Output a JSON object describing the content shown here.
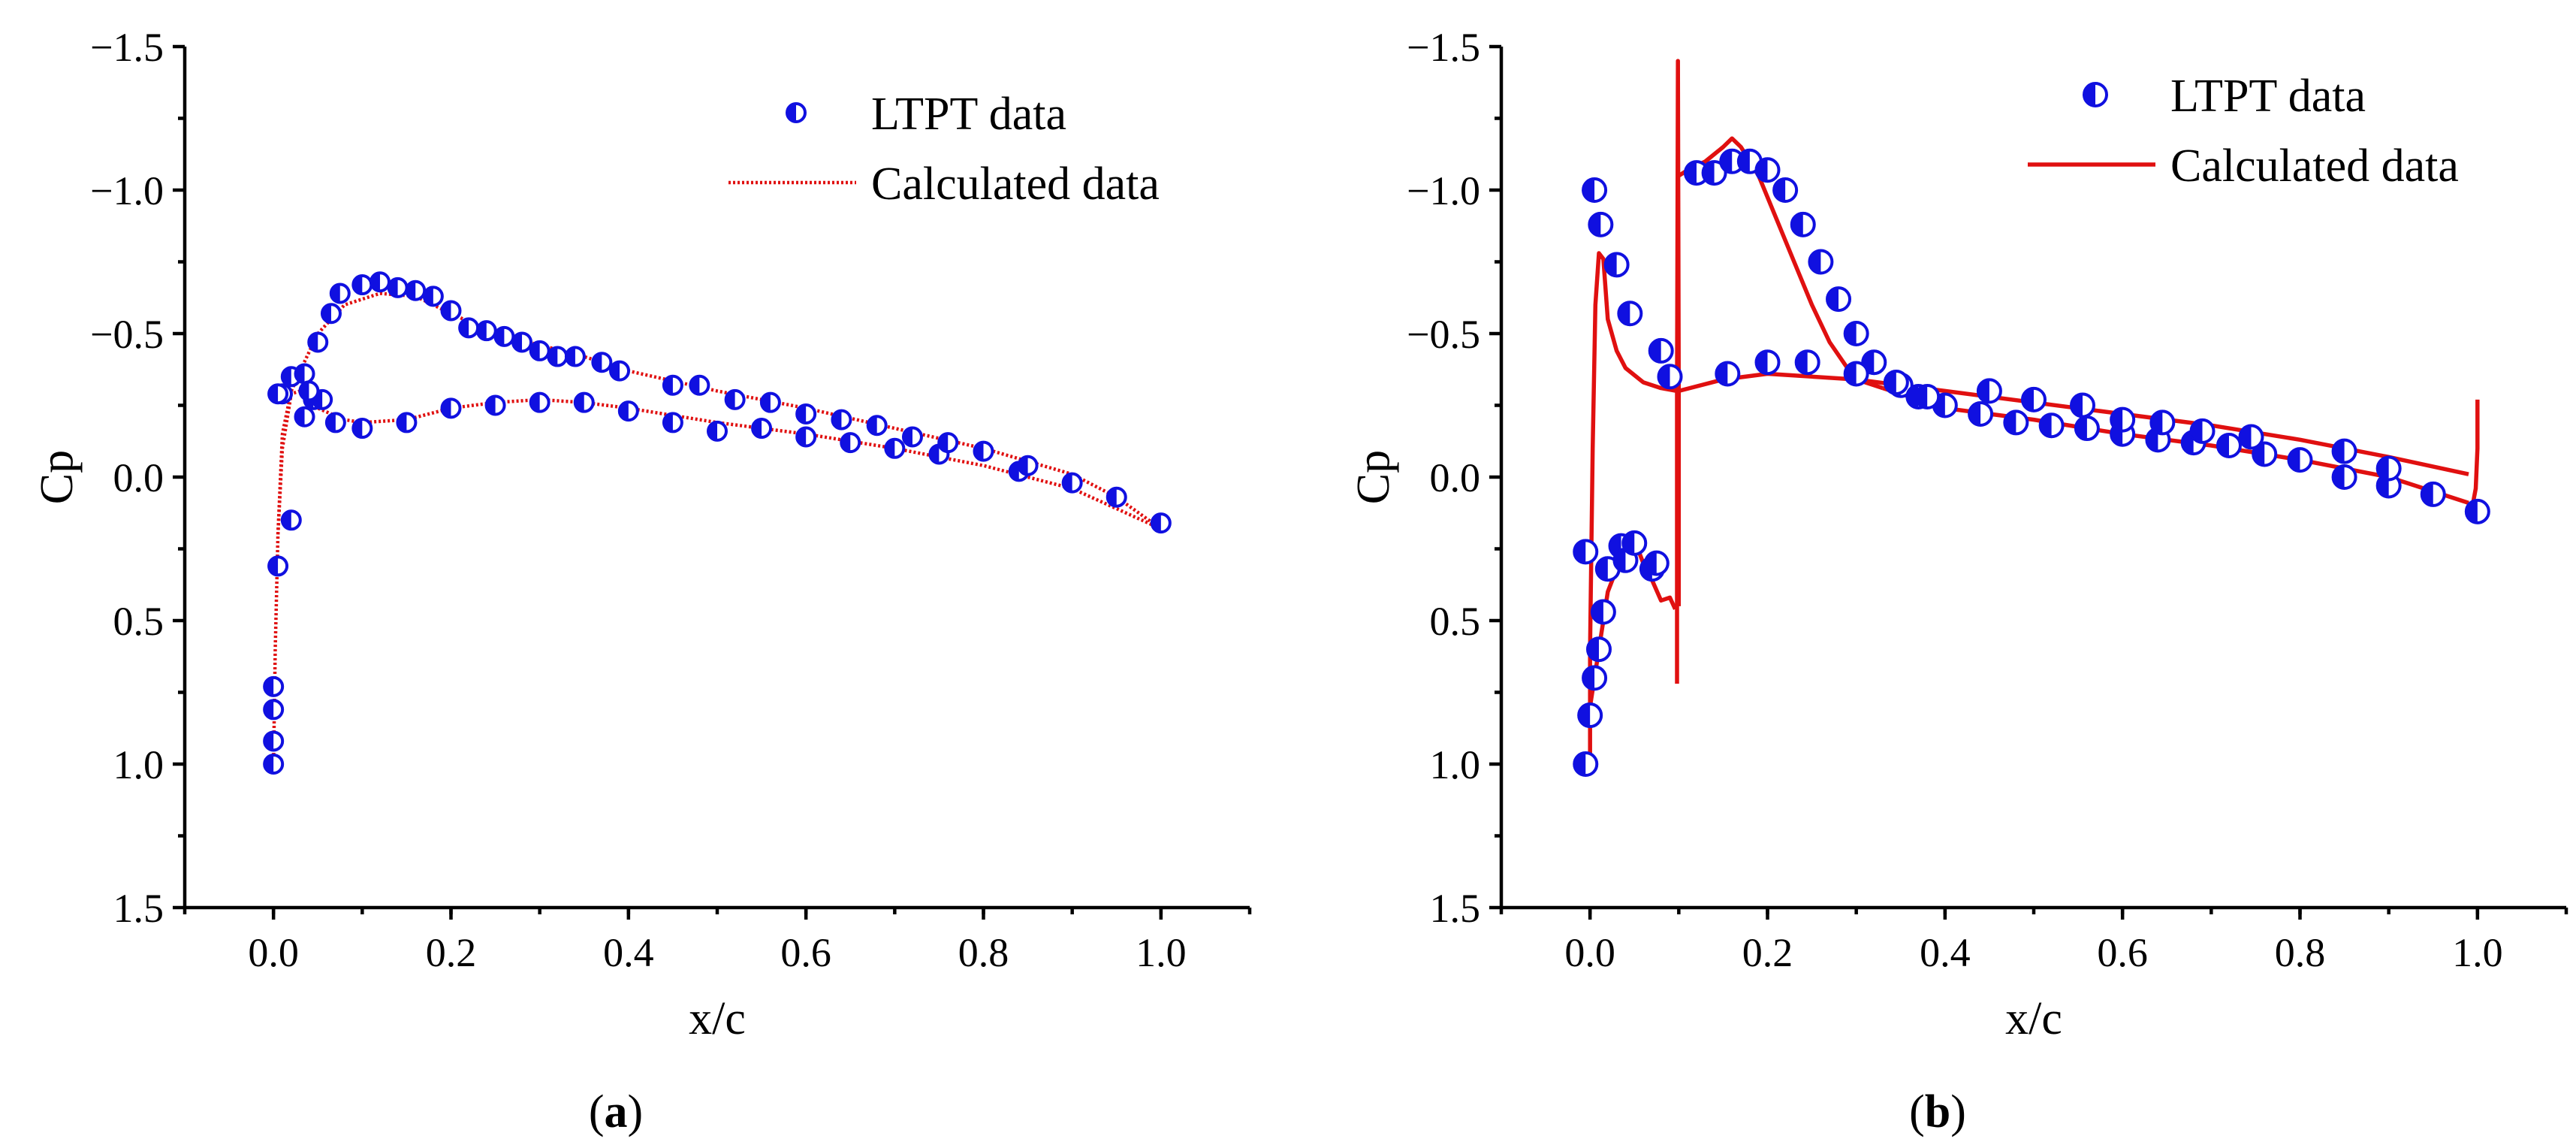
{
  "colors": {
    "marker": "#1010e0",
    "line": "#e01010",
    "axis": "#000000"
  },
  "chart_data": [
    {
      "type": "scatter",
      "panel_label": "a",
      "xlabel": "x/c",
      "ylabel": "Cp",
      "xlim": [
        -0.1,
        1.1
      ],
      "ylim": [
        -1.5,
        1.5
      ],
      "y_inverted": true,
      "x_ticks": [
        "0.0",
        "0.2",
        "0.4",
        "0.6",
        "0.8",
        "1.0"
      ],
      "x_tick_values": [
        0,
        0.2,
        0.4,
        0.6,
        0.8,
        1.0
      ],
      "y_ticks": [
        "−1.5",
        "−1.0",
        "−0.5",
        "0.0",
        "0.5",
        "1.0",
        "1.5"
      ],
      "y_tick_values": [
        -1.5,
        -1.0,
        -0.5,
        0,
        0.5,
        1.0,
        1.5
      ],
      "legend": {
        "position": "top-right",
        "entries": [
          "LTPT data",
          "Calculated data"
        ]
      },
      "series": [
        {
          "name": "LTPT data",
          "kind": "markers",
          "x": [
            0.0,
            0.0,
            0.0,
            0.0,
            0.005,
            0.02,
            0.01,
            0.02,
            0.035,
            0.045,
            0.055,
            0.07,
            0.1,
            0.15,
            0.2,
            0.25,
            0.3,
            0.35,
            0.4,
            0.45,
            0.5,
            0.55,
            0.6,
            0.65,
            0.7,
            0.75,
            0.84,
            0.005,
            0.035,
            0.04,
            0.05,
            0.065,
            0.075,
            0.1,
            0.12,
            0.14,
            0.16,
            0.18,
            0.2,
            0.22,
            0.24,
            0.26,
            0.28,
            0.3,
            0.32,
            0.34,
            0.37,
            0.39,
            0.45,
            0.48,
            0.52,
            0.56,
            0.6,
            0.64,
            0.68,
            0.72,
            0.76,
            0.8,
            0.85,
            0.9,
            0.95,
            1.0
          ],
          "y": [
            1.0,
            0.92,
            0.81,
            0.73,
            0.31,
            0.15,
            -0.29,
            -0.35,
            -0.21,
            -0.27,
            -0.27,
            -0.19,
            -0.17,
            -0.19,
            -0.24,
            -0.25,
            -0.26,
            -0.26,
            -0.23,
            -0.19,
            -0.16,
            -0.17,
            -0.14,
            -0.12,
            -0.1,
            -0.08,
            -0.02,
            -0.29,
            -0.36,
            -0.3,
            -0.47,
            -0.57,
            -0.64,
            -0.67,
            -0.68,
            -0.66,
            -0.65,
            -0.63,
            -0.58,
            -0.52,
            -0.51,
            -0.49,
            -0.47,
            -0.44,
            -0.42,
            -0.42,
            -0.4,
            -0.37,
            -0.32,
            -0.32,
            -0.27,
            -0.26,
            -0.22,
            -0.2,
            -0.18,
            -0.14,
            -0.12,
            -0.09,
            -0.04,
            0.02,
            0.07,
            0.16
          ]
        },
        {
          "name": "Calculated data",
          "kind": "line",
          "style": "dotted",
          "segments": [
            {
              "x": [
                0.0,
                0.002,
                0.005,
                0.01,
                0.02,
                0.03,
                0.05,
                0.08,
                0.12,
                0.16,
                0.2,
                0.25,
                0.3,
                0.35,
                0.4,
                0.5,
                0.6,
                0.7,
                0.8,
                0.9,
                0.95,
                1.0
              ],
              "y": [
                1.0,
                0.6,
                0.2,
                -0.15,
                -0.3,
                -0.37,
                -0.5,
                -0.6,
                -0.64,
                -0.63,
                -0.57,
                -0.5,
                -0.46,
                -0.42,
                -0.37,
                -0.3,
                -0.24,
                -0.17,
                -0.1,
                -0.01,
                0.07,
                0.18
              ]
            },
            {
              "x": [
                0.005,
                0.01,
                0.02,
                0.03,
                0.05,
                0.08,
                0.1,
                0.15,
                0.2,
                0.25,
                0.3,
                0.35,
                0.4,
                0.5,
                0.6,
                0.7,
                0.8,
                0.9,
                1.0
              ],
              "y": [
                0.2,
                -0.1,
                -0.29,
                -0.3,
                -0.24,
                -0.2,
                -0.19,
                -0.2,
                -0.24,
                -0.26,
                -0.27,
                -0.26,
                -0.24,
                -0.19,
                -0.15,
                -0.1,
                -0.04,
                0.04,
                0.18
              ]
            }
          ]
        }
      ]
    },
    {
      "type": "scatter",
      "panel_label": "b",
      "xlabel": "x/c",
      "ylabel": "Cp",
      "xlim": [
        -0.1,
        1.1
      ],
      "ylim": [
        -1.5,
        1.5
      ],
      "y_inverted": true,
      "x_ticks": [
        "0.0",
        "0.2",
        "0.4",
        "0.6",
        "0.8",
        "1.0"
      ],
      "x_tick_values": [
        0,
        0.2,
        0.4,
        0.6,
        0.8,
        1.0
      ],
      "y_ticks": [
        "−1.5",
        "−1.0",
        "−0.5",
        "0.0",
        "0.5",
        "1.0",
        "1.5"
      ],
      "y_tick_values": [
        -1.5,
        -1.0,
        -0.5,
        0,
        0.5,
        1.0,
        1.5
      ],
      "legend": {
        "position": "top-right",
        "entries": [
          "LTPT data",
          "Calculated data"
        ]
      },
      "series": [
        {
          "name": "LTPT data",
          "kind": "markers",
          "x": [
            -0.005,
            0.0,
            -0.005,
            0.005,
            0.01,
            0.015,
            0.02,
            0.035,
            0.04,
            0.05,
            0.07,
            0.075,
            0.005,
            0.012,
            0.03,
            0.045,
            0.08,
            0.09,
            0.12,
            0.14,
            0.16,
            0.18,
            0.2,
            0.22,
            0.24,
            0.26,
            0.28,
            0.3,
            0.32,
            0.35,
            0.37,
            0.4,
            0.44,
            0.48,
            0.52,
            0.56,
            0.6,
            0.64,
            0.68,
            0.72,
            0.76,
            0.8,
            0.85,
            0.9,
            0.95,
            1.0,
            0.155,
            0.2,
            0.245,
            0.3,
            0.345,
            0.38,
            0.45,
            0.5,
            0.555,
            0.6,
            0.645,
            0.69,
            0.745,
            0.85,
            0.9
          ],
          "y": [
            1.0,
            0.83,
            0.26,
            0.7,
            0.6,
            0.47,
            0.32,
            0.24,
            0.29,
            0.23,
            0.32,
            0.3,
            -1.0,
            -0.88,
            -0.74,
            -0.57,
            -0.44,
            -0.35,
            -1.06,
            -1.06,
            -1.1,
            -1.1,
            -1.07,
            -1.0,
            -0.88,
            -0.75,
            -0.62,
            -0.5,
            -0.4,
            -0.32,
            -0.28,
            -0.25,
            -0.22,
            -0.19,
            -0.18,
            -0.17,
            -0.15,
            -0.13,
            -0.12,
            -0.11,
            -0.08,
            -0.06,
            0.0,
            0.03,
            0.06,
            0.12,
            -0.36,
            -0.4,
            -0.4,
            -0.36,
            -0.33,
            -0.28,
            -0.3,
            -0.27,
            -0.25,
            -0.2,
            -0.19,
            -0.16,
            -0.14,
            -0.09,
            -0.03
          ]
        },
        {
          "name": "Calculated data",
          "kind": "line",
          "style": "solid",
          "segments": [
            {
              "x": [
                0.0,
                0.0,
                0.003,
                0.006,
                0.01,
                0.015,
                0.02,
                0.03,
                0.04,
                0.06,
                0.08,
                0.098
              ],
              "y": [
                1.0,
                0.6,
                -0.1,
                -0.6,
                -0.78,
                -0.76,
                -0.55,
                -0.44,
                -0.38,
                -0.33,
                -0.31,
                -0.3
              ]
            },
            {
              "x": [
                0.0,
                0.01,
                0.02,
                0.03,
                0.04,
                0.05,
                0.06,
                0.07,
                0.08,
                0.09,
                0.096
              ],
              "y": [
                0.8,
                0.6,
                0.4,
                0.32,
                0.26,
                0.22,
                0.3,
                0.36,
                0.43,
                0.42,
                0.46
              ]
            },
            {
              "x": [
                0.098,
                0.098,
                0.099,
                0.1,
                0.1
              ],
              "y": [
                0.72,
                -0.3,
                -1.45,
                -0.3,
                0.45
              ]
            },
            {
              "x": [
                0.1,
                0.11,
                0.13,
                0.15,
                0.16,
                0.17,
                0.19,
                0.21,
                0.23,
                0.25,
                0.27,
                0.29,
                0.31,
                0.33
              ],
              "y": [
                -1.05,
                -1.07,
                -1.1,
                -1.15,
                -1.18,
                -1.15,
                -1.05,
                -0.9,
                -0.75,
                -0.6,
                -0.47,
                -0.38,
                -0.33,
                -0.31
              ]
            },
            {
              "x": [
                0.1,
                0.15,
                0.2,
                0.25,
                0.3,
                0.35,
                0.4,
                0.5,
                0.6,
                0.7,
                0.8,
                0.9,
                0.99
              ],
              "y": [
                -0.3,
                -0.34,
                -0.36,
                -0.35,
                -0.34,
                -0.32,
                -0.3,
                -0.26,
                -0.22,
                -0.18,
                -0.13,
                -0.07,
                -0.01
              ]
            },
            {
              "x": [
                0.33,
                0.4,
                0.5,
                0.6,
                0.7,
                0.8,
                0.9,
                0.99
              ],
              "y": [
                -0.31,
                -0.24,
                -0.2,
                -0.15,
                -0.11,
                -0.06,
                0.0,
                0.09
              ]
            },
            {
              "x": [
                0.995,
                0.998,
                1.0,
                1.0
              ],
              "y": [
                0.09,
                0.04,
                -0.1,
                -0.27
              ]
            }
          ]
        }
      ]
    }
  ]
}
